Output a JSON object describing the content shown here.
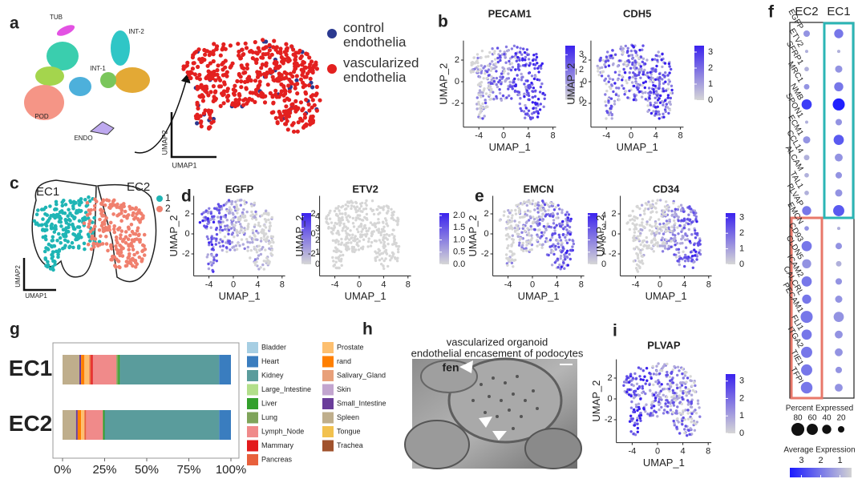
{
  "panel_labels": [
    "a",
    "b",
    "c",
    "d",
    "e",
    "f",
    "g",
    "h",
    "i"
  ],
  "umap_clusters": {
    "labels": [
      "TUB",
      "INT-2",
      "INT-1",
      "POD",
      "ENDO"
    ],
    "xlabel": "UMAP1",
    "ylabel": "UMAP2"
  },
  "endothelia_legend": [
    {
      "name": "control endothelia",
      "color": "#2b3990"
    },
    {
      "name": "vascularized endothelia",
      "color": "#e3201f"
    }
  ],
  "subclusters": {
    "labels": [
      {
        "name": "EC1",
        "color": "#1fb5b5"
      },
      {
        "name": "EC2",
        "color": "#f0806e"
      }
    ],
    "legend": [
      {
        "name": "1",
        "color": "#1fb5b5"
      },
      {
        "name": "2",
        "color": "#f0806e"
      }
    ],
    "xlabel": "UMAP1",
    "ylabel": "UMAP2"
  },
  "feature_plot_colors": [
    "#d6d6d6",
    "#3a22ee"
  ],
  "feature_plots": [
    {
      "title": "PECAM1",
      "xlabel": "UMAP_1",
      "ylabel": "UMAP_2",
      "xlim": [
        -6.5,
        8.5
      ],
      "ylim": [
        -4.2,
        3.8
      ],
      "xticks": [
        -4,
        0,
        4,
        8
      ],
      "yticks": [
        -2,
        0,
        2
      ],
      "colorbar_lim": [
        0,
        3.6
      ],
      "colorbar_ticks": [
        0,
        1,
        2,
        3
      ]
    },
    {
      "title": "CDH5",
      "xlabel": "UMAP_1",
      "ylabel": "UMAP_2",
      "xlim": [
        -6.5,
        8.5
      ],
      "ylim": [
        -4.2,
        3.8
      ],
      "xticks": [
        -4,
        0,
        4,
        8
      ],
      "yticks": [
        -2,
        0,
        2
      ],
      "colorbar_lim": [
        0,
        3.4
      ],
      "colorbar_ticks": [
        0,
        1,
        2,
        3
      ]
    },
    {
      "title": "EGFP",
      "xlabel": "UMAP_1",
      "ylabel": "UMAP_2",
      "xlim": [
        -6.5,
        8.5
      ],
      "ylim": [
        -4.2,
        3.8
      ],
      "xticks": [
        -4,
        0,
        4,
        8
      ],
      "yticks": [
        -2,
        0,
        2
      ],
      "colorbar_lim": [
        0,
        4.3
      ],
      "colorbar_ticks": [
        0,
        1,
        2,
        3,
        4
      ]
    },
    {
      "title": "ETV2",
      "xlabel": "UMAP_1",
      "ylabel": "UMAP_2",
      "xlim": [
        -6.5,
        8.5
      ],
      "ylim": [
        -4.2,
        3.8
      ],
      "xticks": [
        -4,
        0,
        4,
        8
      ],
      "yticks": [
        -2,
        0,
        2
      ],
      "colorbar_lim": [
        0,
        2.1
      ],
      "colorbar_ticks": [
        {
          "value": 0,
          "label": "0.0"
        },
        0.5,
        {
          "value": 1,
          "label": "1.0"
        },
        1.5,
        {
          "value": 2,
          "label": "2.0"
        }
      ]
    },
    {
      "title": "EMCN",
      "xlabel": "UMAP_1",
      "ylabel": "UMAP_2",
      "xlim": [
        -6.5,
        8.5
      ],
      "ylim": [
        -4.2,
        3.8
      ],
      "xticks": [
        -4,
        0,
        4,
        8
      ],
      "yticks": [
        -2,
        0,
        2
      ],
      "colorbar_lim": [
        0,
        4.2
      ],
      "colorbar_ticks": [
        0,
        1,
        2,
        3,
        4
      ]
    },
    {
      "title": "CD34",
      "xlabel": "UMAP_1",
      "ylabel": "UMAP_2",
      "xlim": [
        -6.5,
        8.5
      ],
      "ylim": [
        -4.2,
        3.8
      ],
      "xticks": [
        -4,
        0,
        4,
        8
      ],
      "yticks": [
        -2,
        0,
        2
      ],
      "colorbar_lim": [
        0,
        3.3
      ],
      "colorbar_ticks": [
        0,
        1,
        2,
        3
      ]
    },
    {
      "title": "PLVAP",
      "xlabel": "UMAP_1",
      "ylabel": "UMAP_2",
      "xlim": [
        -6.5,
        8.5
      ],
      "ylim": [
        -4.2,
        3.8
      ],
      "xticks": [
        -4,
        0,
        4,
        8
      ],
      "yticks": [
        -2,
        0,
        2
      ],
      "colorbar_lim": [
        0,
        3.4
      ],
      "colorbar_ticks": [
        0,
        1,
        2,
        3
      ]
    }
  ],
  "dotplot": {
    "type": "dot",
    "genes": [
      "EGFP",
      "ETV2",
      "SFRP1",
      "MRC1",
      "NMB",
      "SPON1",
      "ECM1",
      "CCL14",
      "ALCAM",
      "TAL1",
      "PLVAP",
      "EMCN",
      "CD93",
      "CLDN5",
      "ICAM2",
      "CALCRL",
      "PECAM1",
      "FLI1",
      "ITGA2",
      "TIE1",
      "TFPI"
    ],
    "groups": [
      {
        "name": "EC2",
        "color": "#e8786a",
        "pct": [
          20,
          5,
          10,
          15,
          50,
          5,
          25,
          15,
          10,
          10,
          40,
          10,
          50,
          40,
          50,
          40,
          70,
          50,
          60,
          60,
          65
        ],
        "avg": [
          1.5,
          1,
          1,
          1.5,
          3,
          1,
          1.5,
          1,
          1,
          1,
          2,
          1.5,
          2,
          1.5,
          2,
          2,
          2,
          2,
          2,
          2,
          2
        ]
      },
      {
        "name": "EC1",
        "color": "#2bb5b5",
        "pct": [
          40,
          5,
          25,
          40,
          70,
          20,
          50,
          30,
          20,
          25,
          60,
          5,
          20,
          15,
          20,
          25,
          50,
          30,
          30,
          20,
          30
        ],
        "avg": [
          2,
          1,
          1.5,
          2,
          3.5,
          1.5,
          2.5,
          1.5,
          1.5,
          1.5,
          2.5,
          1,
          1.5,
          1,
          1.5,
          1.5,
          1.5,
          1.5,
          1.5,
          1.5,
          1.5
        ]
      }
    ],
    "size_legend": {
      "title": "Percent Expressed",
      "values": [
        80,
        60,
        40,
        20
      ]
    },
    "color_legend": {
      "title": "Average Expression",
      "ticks": [
        3,
        2,
        1
      ],
      "lim": [
        0.4,
        3.6
      ]
    },
    "color_low": "#d3d3d3",
    "color_high": "#1a1aff"
  },
  "chart_data": {
    "type": "bar",
    "orientation": "horizontal",
    "stacked": true,
    "categories": [
      "EC1",
      "EC2"
    ],
    "category_colors": [
      "#1fb5b5",
      "#f0806e"
    ],
    "xlim": [
      0,
      100
    ],
    "xticks": [
      {
        "value": 0,
        "label": "0%"
      },
      {
        "value": 25,
        "label": "25%"
      },
      {
        "value": 50,
        "label": "50%"
      },
      {
        "value": 75,
        "label": "75%"
      },
      {
        "value": 100,
        "label": "100%"
      }
    ],
    "series": [
      {
        "name": "Bladder",
        "color": "#a6cee3",
        "values": [
          0,
          0
        ]
      },
      {
        "name": "Heart",
        "color": "#3a7dbf",
        "values": [
          7,
          7
        ]
      },
      {
        "name": "Kidney",
        "color": "#5a9c9c",
        "values": [
          59,
          68
        ]
      },
      {
        "name": "Large_Intestine",
        "color": "#b2df8a",
        "values": [
          0,
          0
        ]
      },
      {
        "name": "Liver",
        "color": "#33a02c",
        "values": [
          1,
          1
        ]
      },
      {
        "name": "Lung",
        "color": "#7fa45a",
        "values": [
          1,
          0
        ]
      },
      {
        "name": "Lymph_Node",
        "color": "#f08a8a",
        "values": [
          14,
          10
        ]
      },
      {
        "name": "Mammary",
        "color": "#e31a1c",
        "values": [
          1,
          0
        ]
      },
      {
        "name": "Pancreas",
        "color": "#e8603c",
        "values": [
          1,
          1
        ]
      },
      {
        "name": "Prostate",
        "color": "#fdbf6f",
        "values": [
          3,
          2
        ]
      },
      {
        "name": "rand",
        "color": "#ff7f00",
        "values": [
          2,
          2
        ]
      },
      {
        "name": "Salivary_Gland",
        "color": "#e8a07a",
        "values": [
          0,
          0
        ]
      },
      {
        "name": "Skin",
        "color": "#c2a5cf",
        "values": [
          0,
          0
        ]
      },
      {
        "name": "Small_Intestine",
        "color": "#6a3d9a",
        "values": [
          1,
          1
        ]
      },
      {
        "name": "Spleen",
        "color": "#bfae8c",
        "values": [
          10,
          8
        ]
      },
      {
        "name": "Tongue",
        "color": "#f2c14e",
        "values": [
          0,
          0
        ]
      },
      {
        "name": "Trachea",
        "color": "#a0522d",
        "values": [
          0,
          0
        ]
      }
    ]
  },
  "sem_image": {
    "title_lines": [
      "vascularized organoid",
      "endothelial encasement of podocytes"
    ],
    "annotation": "fen"
  }
}
